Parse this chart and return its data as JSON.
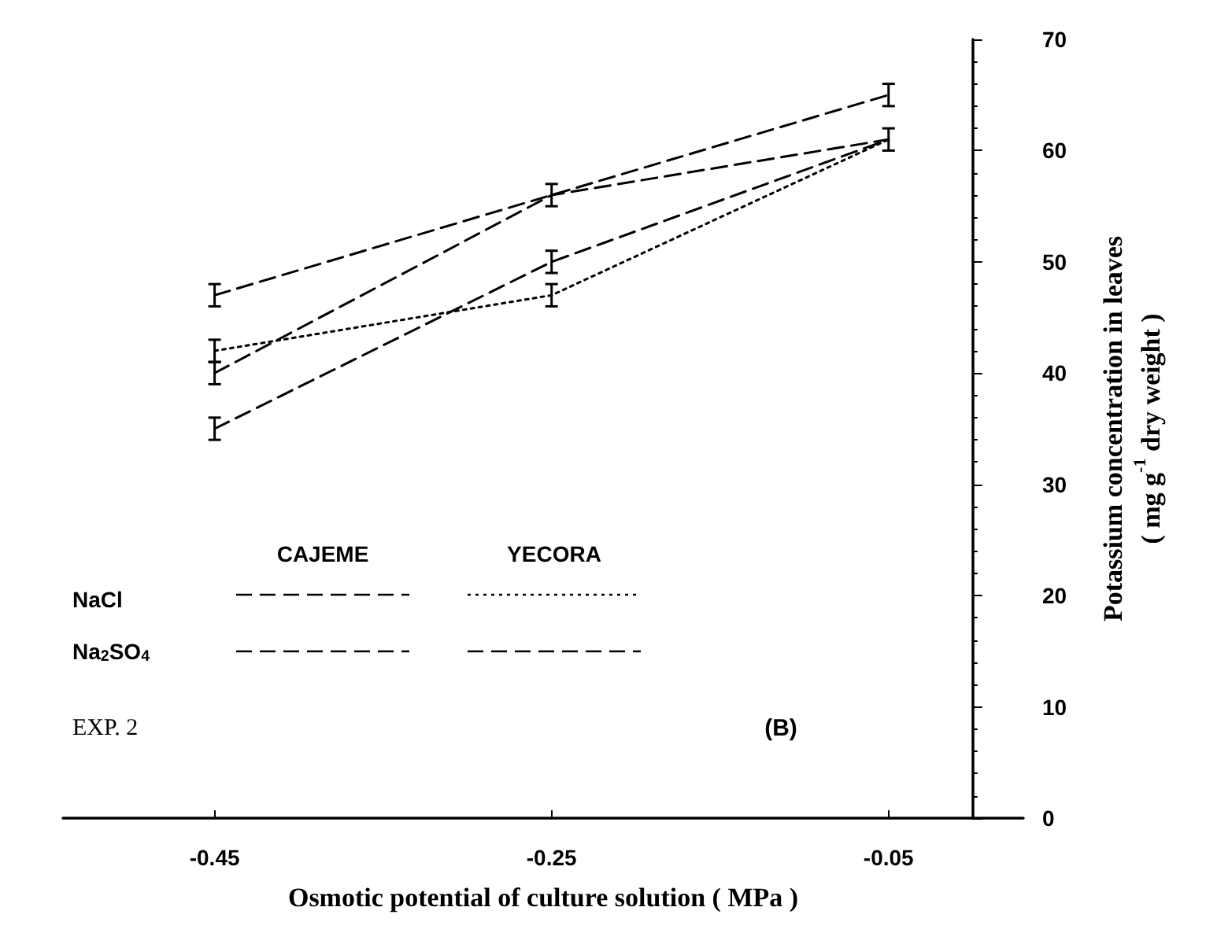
{
  "chart_data": {
    "type": "line",
    "xlabel": "Osmotic potential of culture solution ( MPa )",
    "ylabel": "Potassium concentration in leaves\n( mg g$^{-1}$ dry weight )",
    "x": [
      -0.45,
      -0.25,
      -0.05
    ],
    "xlim": [
      -0.54,
      0.03
    ],
    "xticks": [
      -0.45,
      -0.25,
      -0.05
    ],
    "ylim": [
      0,
      70
    ],
    "yticks": [
      0,
      10,
      20,
      30,
      40,
      50,
      60,
      70
    ],
    "series": [
      {
        "color": "#000000",
        "line_style": "dashed",
        "values": [
          47,
          56,
          65
        ],
        "errors": [
          1,
          1,
          1
        ]
      },
      {
        "color": "#000000",
        "line_style": "dotted",
        "values": [
          42,
          47,
          61
        ],
        "errors": [
          1,
          1,
          1
        ]
      },
      {
        "color": "#000000",
        "line_style": "dashed",
        "values": [
          40,
          56,
          61
        ],
        "errors": [
          1,
          null,
          null
        ]
      },
      {
        "color": "#000000",
        "line_style": "dashed",
        "values": [
          35,
          50,
          61
        ],
        "errors": [
          1,
          1,
          null
        ]
      }
    ],
    "marker": "none",
    "grid": false,
    "annotations": [
      "CAJEME",
      "YECORA",
      "NaCl",
      "Na$_{2}$SO$_{4}$",
      "EXP. 2",
      "(B)"
    ]
  }
}
